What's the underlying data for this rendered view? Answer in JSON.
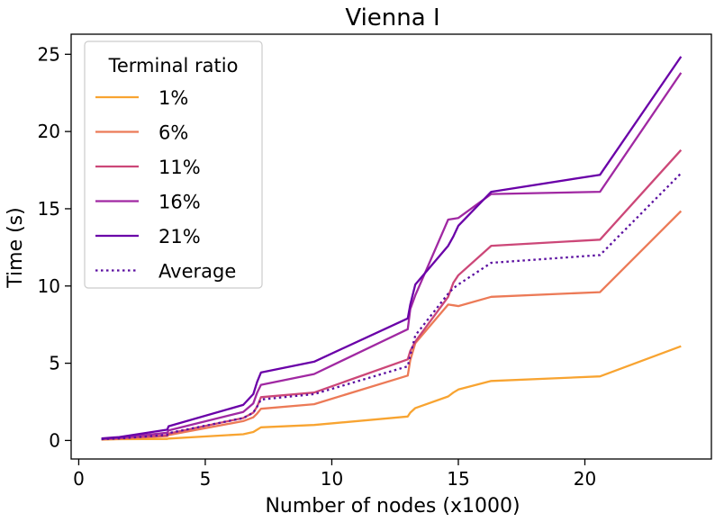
{
  "chart_data": {
    "type": "line",
    "title": "Vienna I",
    "xlabel": "Number of nodes (x1000)",
    "ylabel": "Time (s)",
    "xlim": [
      -0.3,
      25.0
    ],
    "ylim": [
      -1.2,
      26.3
    ],
    "xticks": [
      0,
      5,
      10,
      15,
      20
    ],
    "yticks": [
      0,
      5,
      10,
      15,
      20,
      25
    ],
    "x_tick_labels": [
      "0",
      "5",
      "10",
      "15",
      "20"
    ],
    "y_tick_labels": [
      "0",
      "5",
      "10",
      "15",
      "20",
      "25"
    ],
    "grid": false,
    "legend": {
      "title": "Terminal ratio",
      "placement": "top-left"
    },
    "x": [
      0.9,
      1.6,
      3.5,
      3.55,
      6.5,
      6.9,
      7.05,
      7.2,
      9.3,
      13.0,
      13.1,
      13.3,
      14.6,
      14.8,
      15.0,
      16.3,
      20.6,
      23.8
    ],
    "series": [
      {
        "name": "1%",
        "color": "#f8a431",
        "dash": "solid",
        "values": [
          0.05,
          0.08,
          0.1,
          0.12,
          0.4,
          0.55,
          0.7,
          0.85,
          1.0,
          1.55,
          1.8,
          2.1,
          2.85,
          3.1,
          3.3,
          3.85,
          4.15,
          6.1
        ]
      },
      {
        "name": "6%",
        "color": "#ec7a57",
        "dash": "solid",
        "values": [
          0.07,
          0.12,
          0.28,
          0.35,
          1.25,
          1.5,
          1.75,
          2.05,
          2.35,
          4.2,
          5.2,
          6.3,
          8.8,
          8.75,
          8.7,
          9.3,
          9.6,
          14.85
        ]
      },
      {
        "name": "11%",
        "color": "#cc4778",
        "dash": "solid",
        "values": [
          0.09,
          0.14,
          0.33,
          0.45,
          1.45,
          1.8,
          2.2,
          2.8,
          3.1,
          5.25,
          5.8,
          6.4,
          9.3,
          10.2,
          10.7,
          12.6,
          13.0,
          18.8
        ]
      },
      {
        "name": "16%",
        "color": "#a028a2",
        "dash": "solid",
        "values": [
          0.1,
          0.18,
          0.5,
          0.65,
          1.85,
          2.4,
          3.1,
          3.6,
          4.3,
          7.2,
          8.5,
          9.4,
          14.3,
          14.35,
          14.4,
          15.95,
          16.1,
          23.8
        ]
      },
      {
        "name": "21%",
        "color": "#6a00a8",
        "dash": "solid",
        "values": [
          0.13,
          0.22,
          0.7,
          0.92,
          2.3,
          3.0,
          3.8,
          4.4,
          5.1,
          7.9,
          8.8,
          10.1,
          12.6,
          13.2,
          13.9,
          16.1,
          17.2,
          24.85
        ]
      },
      {
        "name": "Average",
        "color": "#5b0fa0",
        "dash": "dotted",
        "values": [
          0.08,
          0.13,
          0.36,
          0.48,
          1.45,
          1.8,
          2.2,
          2.65,
          3.0,
          4.8,
          5.5,
          6.8,
          9.5,
          9.85,
          10.1,
          11.5,
          12.0,
          17.3
        ]
      }
    ]
  }
}
